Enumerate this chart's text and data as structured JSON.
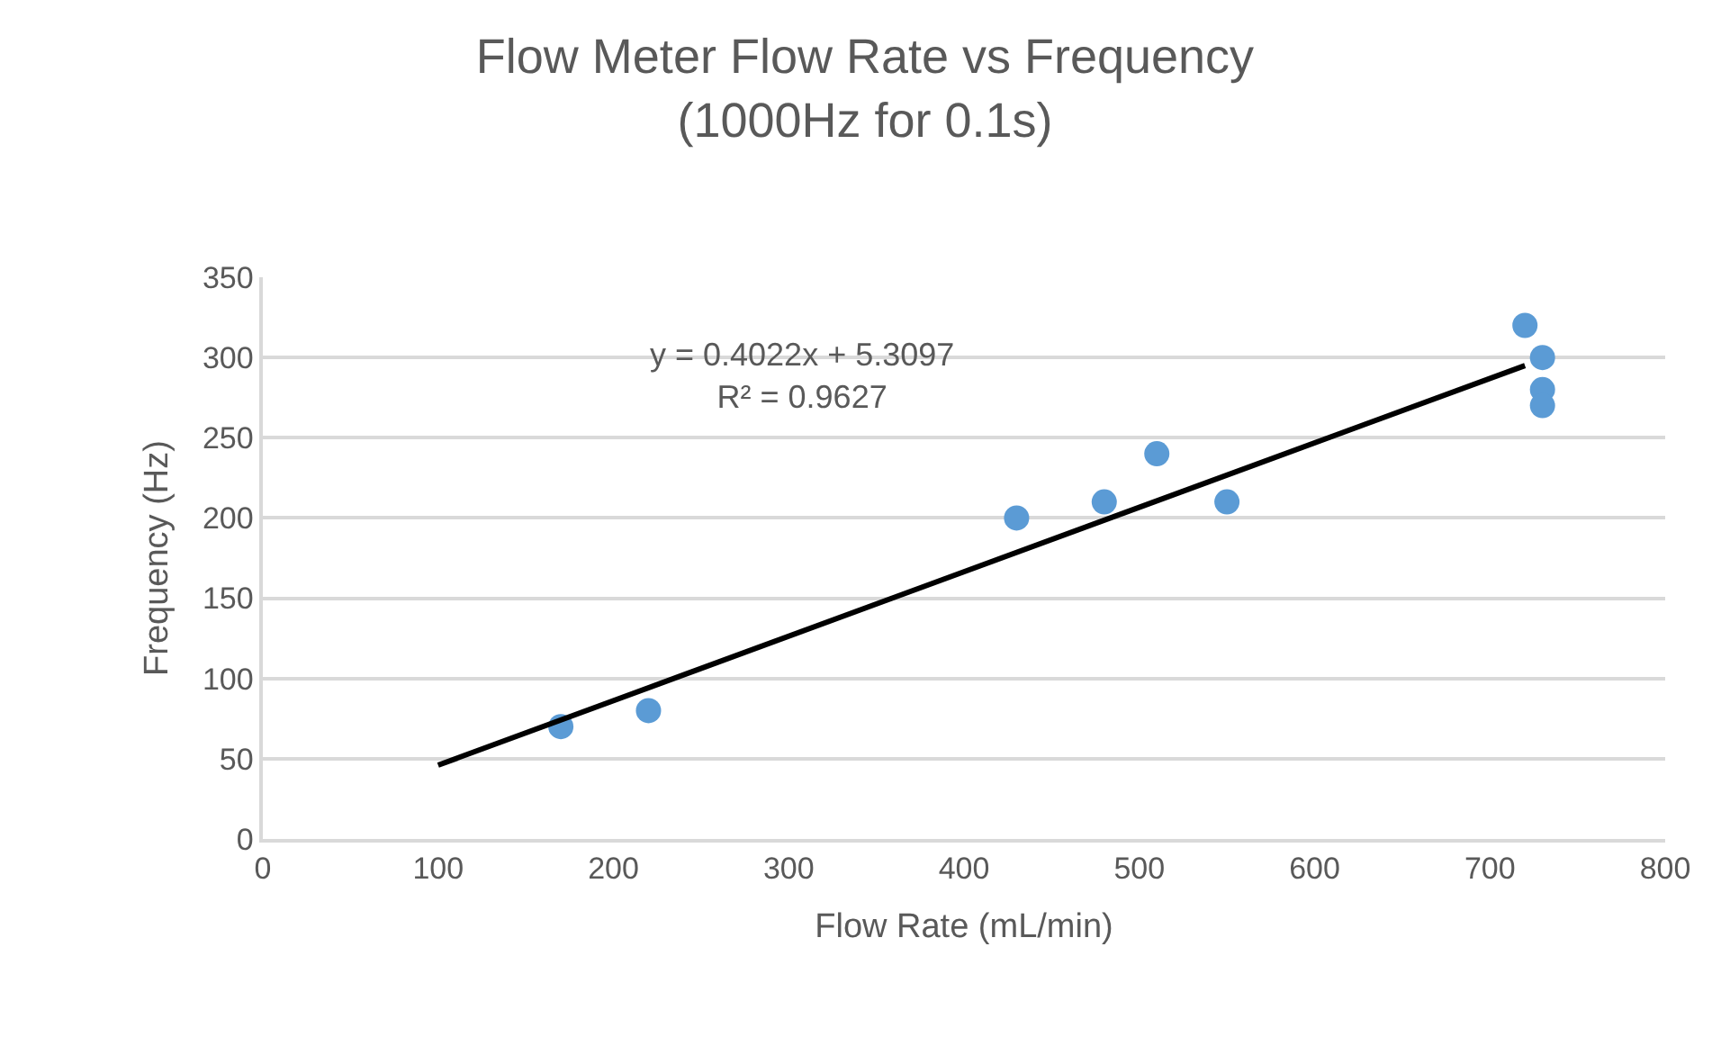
{
  "chart_data": {
    "type": "scatter",
    "title": "Flow Meter Flow Rate vs Frequency\n(1000Hz for 0.1s)",
    "xlabel": "Flow Rate (mL/min)",
    "ylabel": "Frequency (Hz)",
    "x": [
      170,
      220,
      430,
      480,
      510,
      550,
      720,
      730,
      730,
      730
    ],
    "series": [
      {
        "color": "#5b9bd5",
        "values": [
          70,
          80,
          200,
          210,
          240,
          210,
          320,
          300,
          280,
          270
        ],
        "marker": "circle"
      },
      {
        "type": "line",
        "color": "#000000",
        "x": [
          100,
          720
        ],
        "values": [
          46,
          295
        ],
        "marker": "none"
      }
    ],
    "annotations": [
      "y = 0.4022x + 5.3097\nR² = 0.9627"
    ],
    "xlim": [
      0,
      800
    ],
    "xticks": [
      0,
      100,
      200,
      300,
      400,
      500,
      600,
      700,
      800
    ],
    "ylim": [
      0,
      350
    ],
    "yticks": [
      0,
      50,
      100,
      150,
      200,
      250,
      300,
      350
    ],
    "grid": "y"
  }
}
